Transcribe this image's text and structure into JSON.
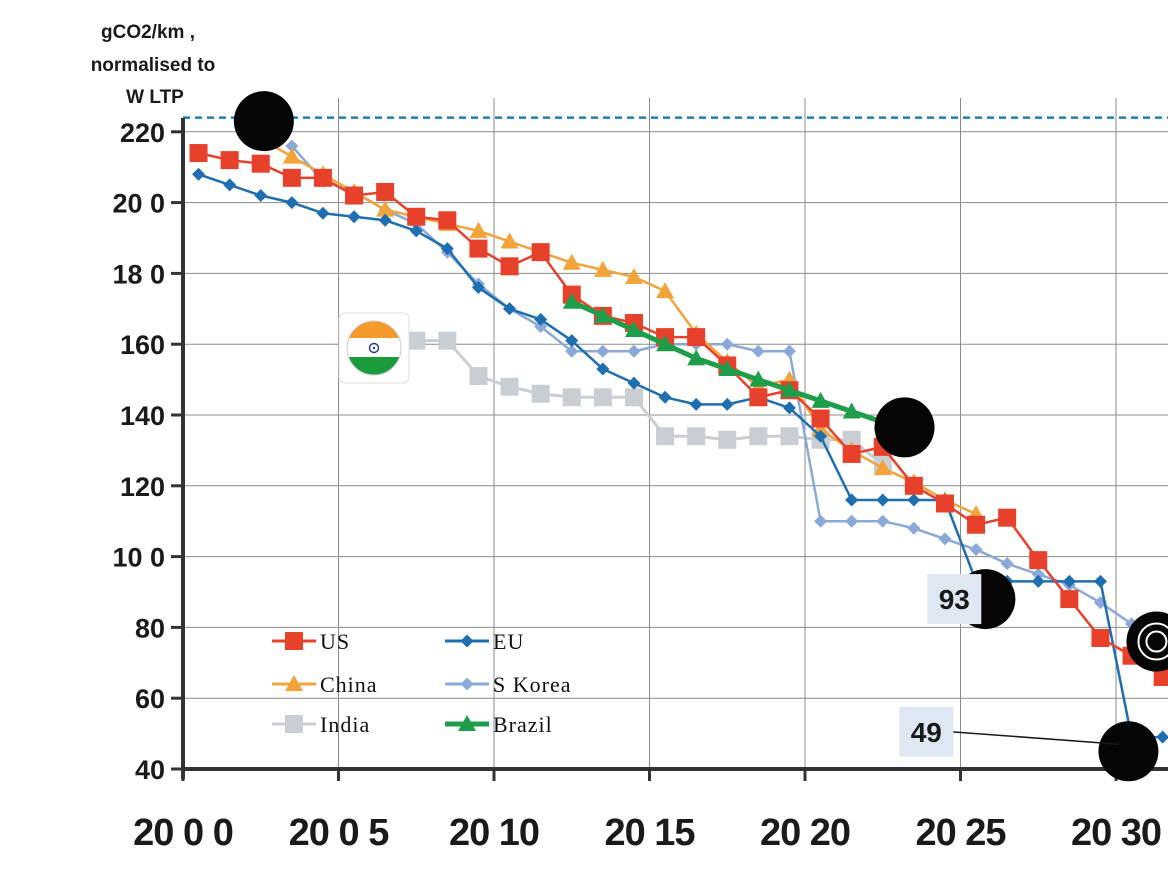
{
  "chart_data": {
    "type": "line",
    "ylabel_lines": [
      "gCO2/km ,",
      "normalised to",
      "W LTP"
    ],
    "ylim": [
      40,
      230
    ],
    "yticks": [
      40,
      60,
      80,
      100,
      120,
      140,
      160,
      180,
      200,
      220
    ],
    "ytick_labels": [
      "40",
      "60",
      "80",
      "10 0",
      "120",
      "140",
      "160",
      "18 0",
      "20 0",
      "220"
    ],
    "xlim": [
      2000,
      2030.7
    ],
    "xticks": [
      2000,
      2005,
      2010,
      2015,
      2020,
      2025,
      2030
    ],
    "xtick_labels": [
      "20 0 0",
      "20 0 5",
      "20 10",
      "20 15",
      "20 20",
      "20 25",
      "20 30"
    ],
    "grid": true,
    "reference_line": 224,
    "series": [
      {
        "name": "US",
        "color": "#e8412b",
        "marker": "square",
        "x": [
          2000.5,
          2001.5,
          2002.5,
          2003.5,
          2004.5,
          2005.5,
          2006.5,
          2007.5,
          2008.5,
          2009.5,
          2010.5,
          2011.5,
          2012.5,
          2013.5,
          2014.5,
          2015.5,
          2016.5,
          2017.5,
          2018.5,
          2019.5,
          2020.5,
          2021.5,
          2022.5,
          2023.5,
          2024.5,
          2025.5,
          2026.5,
          2027.5,
          2028.5,
          2029.5,
          2030.5,
          2031.5
        ],
        "y": [
          214,
          212,
          211,
          207,
          207,
          202,
          203,
          196,
          195,
          187,
          182,
          186,
          174,
          168,
          166,
          162,
          162,
          154,
          145,
          147,
          139,
          129,
          131,
          120,
          115,
          109,
          111,
          99,
          88,
          77,
          72,
          66
        ]
      },
      {
        "name": "EU",
        "color": "#1f6fb0",
        "marker": "diamond",
        "x": [
          2000.5,
          2001.5,
          2002.5,
          2003.5,
          2004.5,
          2005.5,
          2006.5,
          2007.5,
          2008.5,
          2009.5,
          2010.5,
          2011.5,
          2012.5,
          2013.5,
          2014.5,
          2015.5,
          2016.5,
          2017.5,
          2018.5,
          2019.5,
          2020.5,
          2021.5,
          2022.5,
          2023.5,
          2024.5,
          2025.5,
          2026.5,
          2027.5,
          2028.5,
          2029.5,
          2030.5,
          2031.5
        ],
        "y": [
          208,
          205,
          202,
          200,
          197,
          196,
          195,
          192,
          187,
          176,
          170,
          167,
          161,
          153,
          149,
          145,
          143,
          143,
          145,
          142,
          134,
          116,
          116,
          116,
          116,
          93,
          93,
          93,
          93,
          93,
          49,
          49
        ]
      },
      {
        "name": "China",
        "color": "#f2a33a",
        "marker": "triangle",
        "x": [
          2002.5,
          2003.5,
          2004.5,
          2005.5,
          2006.5,
          2007.5,
          2008.5,
          2009.5,
          2010.5,
          2011.5,
          2012.5,
          2013.5,
          2014.5,
          2015.5,
          2016.5,
          2017.5,
          2018.5,
          2019.5,
          2020.5,
          2021.5,
          2022.5,
          2023.5,
          2024.5,
          2025.5
        ],
        "y": [
          218,
          213,
          208,
          203,
          198,
          196,
          194,
          192,
          189,
          186,
          183,
          181,
          179,
          175,
          163,
          155,
          148,
          150,
          136,
          130,
          125,
          121,
          116,
          112
        ]
      },
      {
        "name": "S Korea",
        "color": "#8aa8d8",
        "marker": "diamond",
        "x": [
          2003.5,
          2004.5,
          2005.5,
          2006.5,
          2007.5,
          2008.5,
          2009.5,
          2010.5,
          2011.5,
          2012.5,
          2013.5,
          2014.5,
          2015.5,
          2016.5,
          2017.5,
          2018.5,
          2019.5,
          2020.5,
          2021.5,
          2022.5,
          2023.5,
          2024.5,
          2025.5,
          2026.5,
          2027.5,
          2028.5,
          2029.5,
          2030.5
        ],
        "y": [
          216,
          206,
          203,
          198,
          194,
          186,
          177,
          170,
          165,
          158,
          158,
          158,
          160,
          160,
          160,
          158,
          158,
          110,
          110,
          110,
          108,
          105,
          102,
          98,
          95,
          92,
          87,
          81
        ]
      },
      {
        "name": "India",
        "color": "#c9cdd4",
        "marker": "square",
        "x": [
          2007.5,
          2008.5,
          2009.5,
          2010.5,
          2011.5,
          2012.5,
          2013.5,
          2014.5,
          2015.5,
          2016.5,
          2017.5,
          2018.5,
          2019.5,
          2020.5,
          2021.5,
          2022.5
        ],
        "y": [
          161,
          161,
          151,
          148,
          146,
          145,
          145,
          145,
          134,
          134,
          133,
          134,
          134,
          133,
          133,
          126
        ]
      },
      {
        "name": "Brazil",
        "color": "#1e9e4a",
        "marker": "triangle",
        "x": [
          2012.5,
          2013.5,
          2014.5,
          2015.5,
          2016.5,
          2017.5,
          2018.5,
          2019.5,
          2020.5,
          2021.5,
          2022.5
        ],
        "y": [
          172,
          168,
          164,
          160,
          156,
          153,
          150,
          147,
          144,
          141,
          138
        ]
      }
    ],
    "targets": [
      {
        "x": 2002.6,
        "y": 223
      },
      {
        "x": 2023.2,
        "y": 136.5
      },
      {
        "x": 2025.8,
        "y": 88
      },
      {
        "x": 2030.4,
        "y": 45
      },
      {
        "x": 2031.3,
        "y": 76
      }
    ],
    "annotations": [
      {
        "text": "93",
        "x": 2024.8,
        "y": 88,
        "arrow_to": [
          2025.4,
          88
        ]
      },
      {
        "text": "49",
        "x": 2023.9,
        "y": 50.5,
        "arrow_to": [
          2030.1,
          47
        ]
      }
    ],
    "legend_location": "lower-left",
    "legend": [
      "US",
      "EU",
      "China",
      "S Korea",
      "India",
      "Brazil"
    ]
  }
}
